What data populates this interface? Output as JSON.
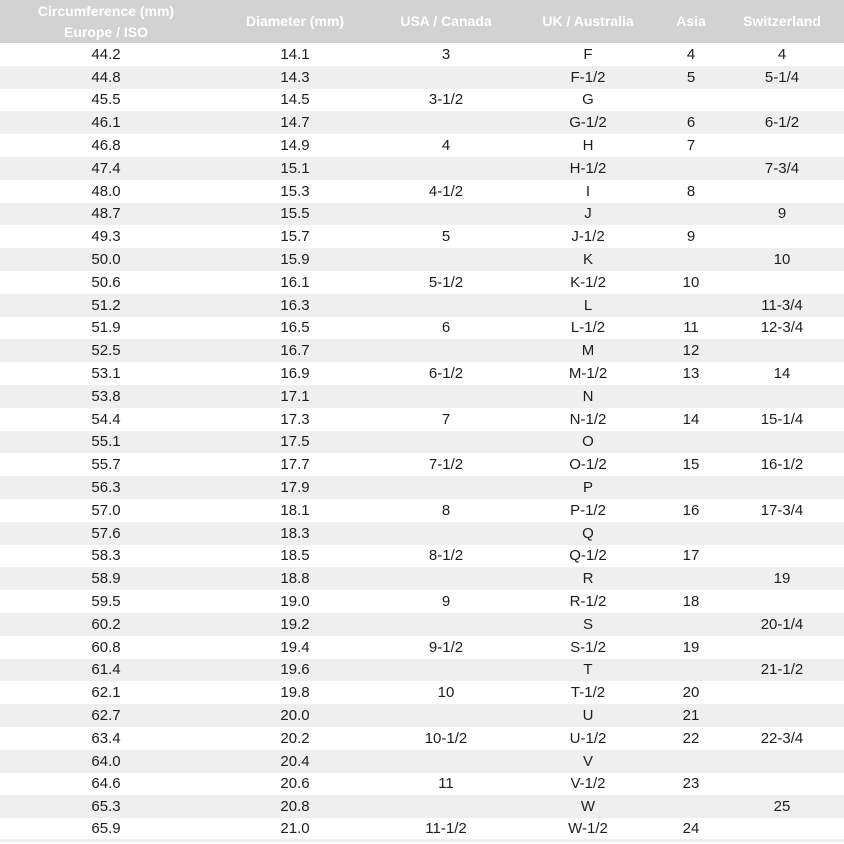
{
  "table": {
    "header": {
      "circumference_line1": "Circumference (mm)",
      "circumference_line2": "Europe / ISO",
      "diameter": "Diameter (mm)",
      "usa_canada": "USA / Canada",
      "uk_australia": "UK / Australia",
      "asia": "Asia",
      "switzerland": "Switzerland"
    },
    "rows": [
      [
        "44.2",
        "14.1",
        "3",
        "F",
        "4",
        "4"
      ],
      [
        "44.8",
        "14.3",
        "",
        "F-1/2",
        "5",
        "5-1/4"
      ],
      [
        "45.5",
        "14.5",
        "3-1/2",
        "G",
        "",
        ""
      ],
      [
        "46.1",
        "14.7",
        "",
        "G-1/2",
        "6",
        "6-1/2"
      ],
      [
        "46.8",
        "14.9",
        "4",
        "H",
        "7",
        ""
      ],
      [
        "47.4",
        "15.1",
        "",
        "H-1/2",
        "",
        "7-3/4"
      ],
      [
        "48.0",
        "15.3",
        "4-1/2",
        "I",
        "8",
        ""
      ],
      [
        "48.7",
        "15.5",
        "",
        "J",
        "",
        "9"
      ],
      [
        "49.3",
        "15.7",
        "5",
        "J-1/2",
        "9",
        ""
      ],
      [
        "50.0",
        "15.9",
        "",
        "K",
        "",
        "10"
      ],
      [
        "50.6",
        "16.1",
        "5-1/2",
        "K-1/2",
        "10",
        ""
      ],
      [
        "51.2",
        "16.3",
        "",
        "L",
        "",
        "11-3/4"
      ],
      [
        "51.9",
        "16.5",
        "6",
        "L-1/2",
        "11",
        "12-3/4"
      ],
      [
        "52.5",
        "16.7",
        "",
        "M",
        "12",
        ""
      ],
      [
        "53.1",
        "16.9",
        "6-1/2",
        "M-1/2",
        "13",
        "14"
      ],
      [
        "53.8",
        "17.1",
        "",
        "N",
        "",
        ""
      ],
      [
        "54.4",
        "17.3",
        "7",
        "N-1/2",
        "14",
        "15-1/4"
      ],
      [
        "55.1",
        "17.5",
        "",
        "O",
        "",
        ""
      ],
      [
        "55.7",
        "17.7",
        "7-1/2",
        "O-1/2",
        "15",
        "16-1/2"
      ],
      [
        "56.3",
        "17.9",
        "",
        "P",
        "",
        ""
      ],
      [
        "57.0",
        "18.1",
        "8",
        "P-1/2",
        "16",
        "17-3/4"
      ],
      [
        "57.6",
        "18.3",
        "",
        "Q",
        "",
        ""
      ],
      [
        "58.3",
        "18.5",
        "8-1/2",
        "Q-1/2",
        "17",
        ""
      ],
      [
        "58.9",
        "18.8",
        "",
        "R",
        "",
        "19"
      ],
      [
        "59.5",
        "19.0",
        "9",
        "R-1/2",
        "18",
        ""
      ],
      [
        "60.2",
        "19.2",
        "",
        "S",
        "",
        "20-1/4"
      ],
      [
        "60.8",
        "19.4",
        "9-1/2",
        "S-1/2",
        "19",
        ""
      ],
      [
        "61.4",
        "19.6",
        "",
        "T",
        "",
        "21-1/2"
      ],
      [
        "62.1",
        "19.8",
        "10",
        "T-1/2",
        "20",
        ""
      ],
      [
        "62.7",
        "20.0",
        "",
        "U",
        "21",
        ""
      ],
      [
        "63.4",
        "20.2",
        "10-1/2",
        "U-1/2",
        "22",
        "22-3/4"
      ],
      [
        "64.0",
        "20.4",
        "",
        "V",
        "",
        ""
      ],
      [
        "64.6",
        "20.6",
        "11",
        "V-1/2",
        "23",
        ""
      ],
      [
        "65.3",
        "20.8",
        "",
        "W",
        "",
        "25"
      ],
      [
        "65.9",
        "21.0",
        "11-1/2",
        "W-1/2",
        "24",
        ""
      ]
    ]
  },
  "colors": {
    "header_background": "#d2d2d2",
    "header_text": "#ffffff",
    "row_stripe": "#efefef",
    "row_background": "#ffffff",
    "body_text": "#1e1e1e"
  }
}
